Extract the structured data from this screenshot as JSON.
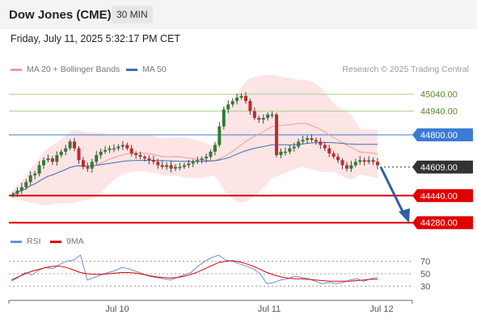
{
  "header": {
    "title": "Dow Jones (CME)",
    "timeframe": "30 MIN"
  },
  "timestamp": "Friday, July 11, 2025 5:32:17 PM CET",
  "legend": {
    "ma20_label": "MA 20 + Bollinger Bands",
    "ma50_label": "MA 50"
  },
  "credit": "Research © 2025 Trading Central",
  "rsi_legend": {
    "rsi_label": "RSI",
    "ma_label": "9MA"
  },
  "colors": {
    "up": "#2e7d32",
    "down": "#c62828",
    "ma20": "#ef9a9a",
    "bollinger": "#fde0e0",
    "ma50": "#3f6fb5",
    "resistance": "#a8d08d",
    "support": "#e00000",
    "pivot": "#3a7bd5",
    "current": "#333333",
    "arrow": "#2f5fa5",
    "rsi": "#6a8fd8",
    "rsi_ma": "#e00000"
  },
  "chart_data": [
    {
      "type": "candlestick",
      "x_ticks": [
        "Jul 10",
        "Jul 11",
        "Jul 12"
      ],
      "ylim": [
        44250,
        45120
      ],
      "closes": [
        44450,
        44470,
        44490,
        44520,
        44560,
        44570,
        44620,
        44650,
        44660,
        44640,
        44680,
        44700,
        44720,
        44760,
        44720,
        44650,
        44610,
        44600,
        44640,
        44680,
        44700,
        44710,
        44720,
        44720,
        44730,
        44740,
        44720,
        44690,
        44680,
        44670,
        44660,
        44650,
        44640,
        44620,
        44610,
        44620,
        44600,
        44610,
        44610,
        44620,
        44630,
        44640,
        44650,
        44660,
        44670,
        44700,
        44740,
        44850,
        44950,
        44980,
        45000,
        45020,
        45030,
        45000,
        44940,
        44900,
        44890,
        44900,
        44920,
        44920,
        44680,
        44700,
        44700,
        44720,
        44730,
        44760,
        44770,
        44780,
        44770,
        44760,
        44740,
        44720,
        44690,
        44670,
        44650,
        44620,
        44600,
        44620,
        44640,
        44650,
        44640,
        44650,
        44640,
        44620
      ],
      "levels": [
        {
          "label": "45040.00",
          "value": 45040,
          "kind": "resistance"
        },
        {
          "label": "44940.00",
          "value": 44940,
          "kind": "resistance"
        },
        {
          "label": "44800.00",
          "value": 44800,
          "kind": "pivot"
        },
        {
          "label": "44609.00",
          "value": 44609,
          "kind": "current"
        },
        {
          "label": "44440.00",
          "value": 44440,
          "kind": "support"
        },
        {
          "label": "44280.00",
          "value": 44280,
          "kind": "support"
        }
      ]
    },
    {
      "type": "line",
      "y_ticks": [
        "70",
        "50",
        "30"
      ],
      "ylim": [
        15,
        85
      ],
      "series": [
        {
          "name": "RSI",
          "values": [
            38,
            44,
            52,
            48,
            56,
            60,
            58,
            65,
            70,
            72,
            80,
            40,
            44,
            48,
            52,
            55,
            60,
            58,
            54,
            50,
            46,
            44,
            42,
            40,
            44,
            48,
            52,
            62,
            70,
            76,
            80,
            72,
            70,
            66,
            62,
            58,
            50,
            34,
            36,
            40,
            42,
            46,
            44,
            42,
            38,
            34,
            36,
            34,
            36,
            40,
            42,
            38,
            42,
            44
          ]
        },
        {
          "name": "9MA",
          "values": [
            40,
            45,
            50,
            54,
            57,
            60,
            62,
            62,
            60,
            56,
            52,
            50,
            49,
            49,
            50,
            51,
            52,
            52,
            51,
            49,
            47,
            45,
            44,
            43,
            44,
            46,
            49,
            53,
            58,
            63,
            68,
            70,
            71,
            69,
            66,
            62,
            57,
            52,
            48,
            45,
            43,
            42,
            42,
            41,
            40,
            39,
            38,
            38,
            38,
            38,
            39,
            40,
            41,
            41
          ]
        }
      ]
    }
  ]
}
